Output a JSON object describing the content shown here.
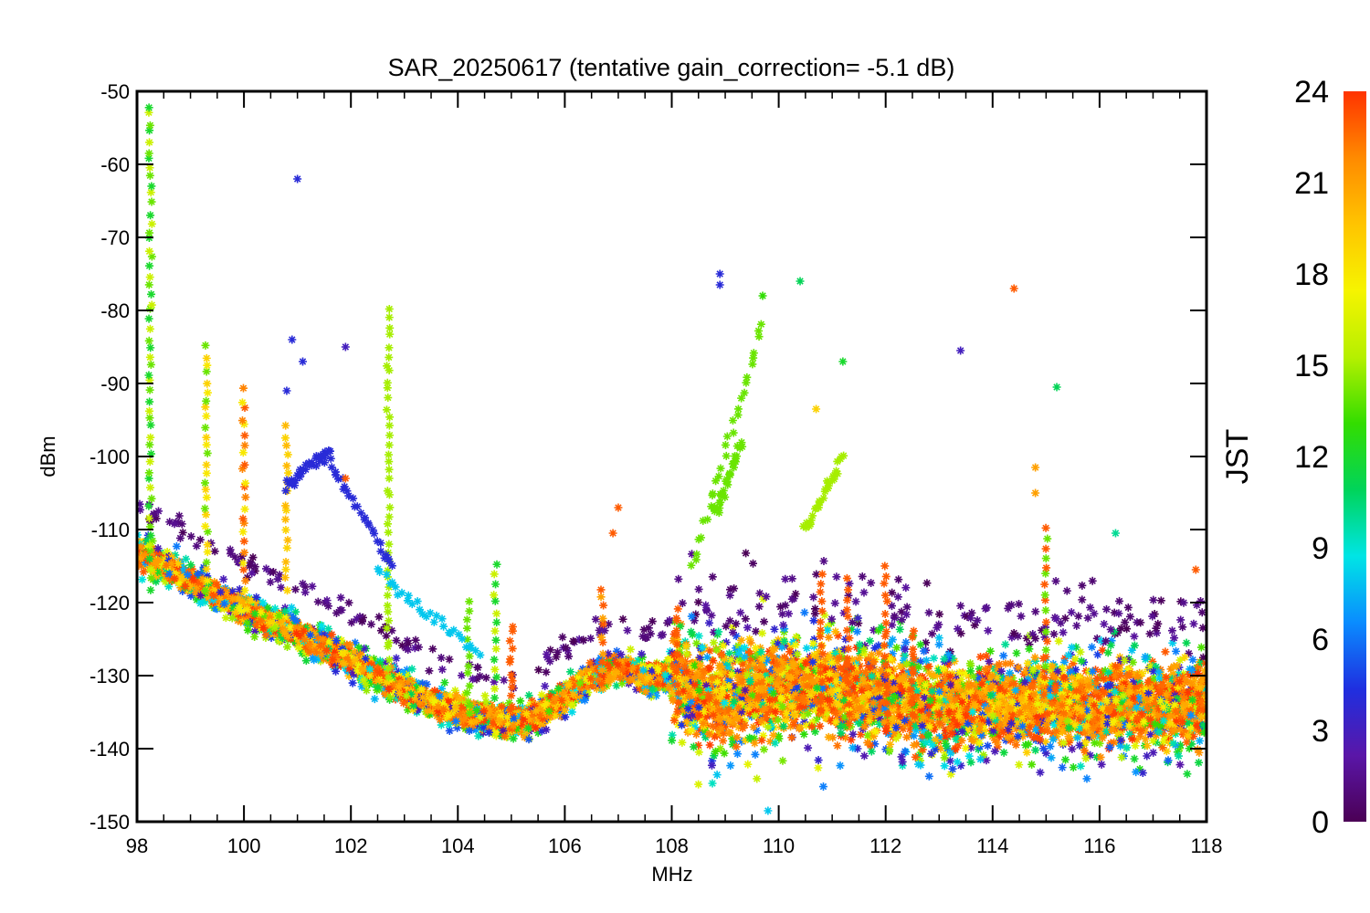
{
  "chart_data": {
    "type": "scatter",
    "title": "SAR_20250617 (tentative gain_correction= -5.1 dB)",
    "xlabel": "MHz",
    "ylabel": "dBm",
    "xlim": [
      98,
      118
    ],
    "ylim": [
      -150,
      -50
    ],
    "xticks": [
      98,
      100,
      102,
      104,
      106,
      108,
      110,
      112,
      114,
      116,
      118
    ],
    "yticks": [
      -50,
      -60,
      -70,
      -80,
      -90,
      -100,
      -110,
      -120,
      -130,
      -140,
      -150
    ],
    "marker": "asterisk",
    "colorbar": {
      "label": "JST",
      "range": [
        0,
        24
      ],
      "ticks": [
        0,
        3,
        6,
        9,
        12,
        15,
        18,
        21,
        24
      ],
      "colormap": "rainbow",
      "colors": [
        "#4b0055",
        "#5a16a8",
        "#1f2fe0",
        "#0a8cff",
        "#00e5e5",
        "#00d45a",
        "#33dd00",
        "#b6f000",
        "#f6f400",
        "#ffc400",
        "#ff8a00",
        "#ff3300"
      ]
    },
    "noise_floor_mean": [
      [
        98,
        -113
      ],
      [
        99,
        -117
      ],
      [
        100,
        -121
      ],
      [
        101,
        -124
      ],
      [
        102,
        -128
      ],
      [
        103,
        -132
      ],
      [
        104,
        -135
      ],
      [
        105,
        -136.5
      ],
      [
        105.5,
        -135.5
      ],
      [
        106,
        -133
      ],
      [
        106.5,
        -130
      ],
      [
        107,
        -129
      ],
      [
        107.5,
        -130
      ],
      [
        108,
        -130
      ],
      [
        108.5,
        -133
      ],
      [
        109,
        -133
      ],
      [
        110,
        -131.5
      ],
      [
        111,
        -132
      ],
      [
        112,
        -133
      ],
      [
        113,
        -134
      ],
      [
        114,
        -134
      ],
      [
        115,
        -134
      ],
      [
        116,
        -134
      ],
      [
        117,
        -134
      ],
      [
        118,
        -134
      ]
    ],
    "bands": [
      {
        "x_from": 98,
        "x_to": 107.9,
        "spread_dB": 2.5
      },
      {
        "x_from": 108,
        "x_to": 112.4,
        "spread_dB": 9
      },
      {
        "x_from": 112.4,
        "x_to": 118,
        "spread_dB": 8
      }
    ],
    "vertical_signals": [
      {
        "x": 98.25,
        "y_from": -118,
        "y_to": -52,
        "jst": [
          12,
          14,
          16
        ]
      },
      {
        "x": 99.3,
        "y_from": -118,
        "y_to": -85,
        "jst": [
          14,
          18,
          19
        ]
      },
      {
        "x": 100,
        "y_from": -118,
        "y_to": -91,
        "jst": [
          18,
          22,
          23
        ]
      },
      {
        "x": 100.8,
        "y_from": -118,
        "y_to": -96,
        "jst": [
          19,
          20
        ]
      },
      {
        "x": 102.7,
        "y_from": -130,
        "y_to": -80,
        "jst": [
          15
        ]
      },
      {
        "x": 104.2,
        "y_from": -135,
        "y_to": -120,
        "jst": [
          14
        ]
      },
      {
        "x": 104.7,
        "y_from": -133,
        "y_to": -115,
        "jst": [
          12,
          16
        ]
      },
      {
        "x": 105,
        "y_from": -135,
        "y_to": -123,
        "jst": [
          23
        ]
      },
      {
        "x": 106.7,
        "y_from": -132,
        "y_to": -118,
        "jst": [
          21,
          23
        ]
      },
      {
        "x": 108.1,
        "y_from": -135,
        "y_to": -121,
        "jst": [
          23
        ]
      },
      {
        "x": 110.8,
        "y_from": -135,
        "y_to": -116,
        "jst": [
          23
        ]
      },
      {
        "x": 111.3,
        "y_from": -135,
        "y_to": -117,
        "jst": [
          23
        ]
      },
      {
        "x": 112,
        "y_from": -135,
        "y_to": -115,
        "jst": [
          23
        ]
      },
      {
        "x": 112.5,
        "y_from": -135,
        "y_to": -124,
        "jst": [
          23
        ]
      },
      {
        "x": 115,
        "y_from": -130,
        "y_to": -110,
        "jst": [
          23,
          14
        ]
      }
    ],
    "isolated_points": [
      {
        "x": 101,
        "y": -62,
        "jst": 4
      },
      {
        "x": 101.9,
        "y": -85,
        "jst": 3
      },
      {
        "x": 100.9,
        "y": -84,
        "jst": 4
      },
      {
        "x": 101.1,
        "y": -87,
        "jst": 4
      },
      {
        "x": 100.8,
        "y": -91,
        "jst": 4
      },
      {
        "x": 108.9,
        "y": -75,
        "jst": 4
      },
      {
        "x": 108.9,
        "y": -76.5,
        "jst": 4
      },
      {
        "x": 109.7,
        "y": -78,
        "jst": 13
      },
      {
        "x": 110.4,
        "y": -76,
        "jst": 11
      },
      {
        "x": 114.4,
        "y": -77,
        "jst": 23
      },
      {
        "x": 113.4,
        "y": -85.5,
        "jst": 3
      },
      {
        "x": 115.2,
        "y": -90.5,
        "jst": 11
      },
      {
        "x": 111.2,
        "y": -87,
        "jst": 12
      },
      {
        "x": 110.7,
        "y": -93.5,
        "jst": 19
      },
      {
        "x": 114.8,
        "y": -101.5,
        "jst": 21
      },
      {
        "x": 114.8,
        "y": -105,
        "jst": 21
      },
      {
        "x": 107,
        "y": -107,
        "jst": 23
      },
      {
        "x": 106.9,
        "y": -110.5,
        "jst": 23
      },
      {
        "x": 101.9,
        "y": -103,
        "jst": 23
      },
      {
        "x": 109.8,
        "y": -148.5,
        "jst": 8
      },
      {
        "x": 117.8,
        "y": -115.5,
        "jst": 23
      },
      {
        "x": 116.3,
        "y": -110.5,
        "jst": 10
      }
    ],
    "rising_tracks": [
      {
        "x_from": 108.4,
        "y_from": -115,
        "x_to": 109.7,
        "y_to": -82,
        "jst": 14
      },
      {
        "x_from": 108.8,
        "y_from": -108,
        "x_to": 109.3,
        "y_to": -98,
        "jst": 14
      },
      {
        "x_from": 110.5,
        "y_from": -110,
        "x_to": 111.2,
        "y_to": -100,
        "jst": 15
      },
      {
        "x_from": 101.5,
        "y_from": -100,
        "x_to": 102.8,
        "y_to": -115,
        "jst": 4
      },
      {
        "x_from": 100.8,
        "y_from": -104,
        "x_to": 101.6,
        "y_to": -99,
        "jst": 4
      },
      {
        "x_from": 102.5,
        "y_from": -116,
        "x_to": 104.4,
        "y_to": -127,
        "jst": 8
      }
    ]
  }
}
